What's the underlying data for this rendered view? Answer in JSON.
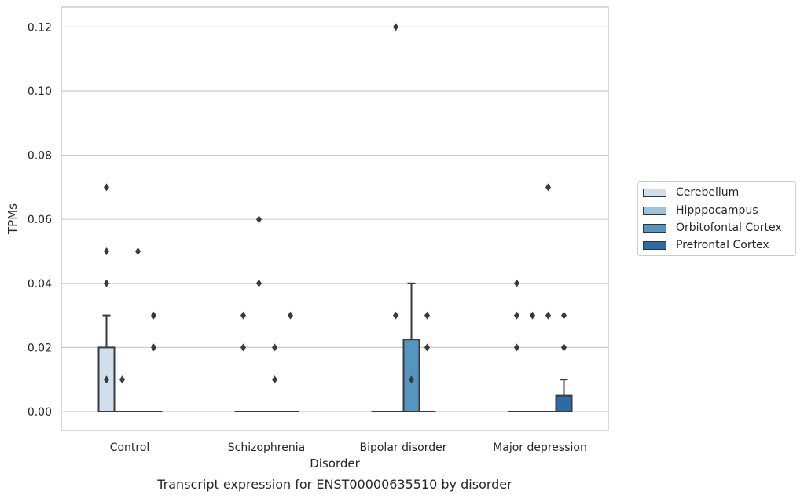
{
  "chart_data": {
    "type": "boxplot",
    "title": "Transcript expression for ENST00000635510 by disorder",
    "xlabel": "Disorder",
    "ylabel": "TPMs",
    "ylim": [
      -0.006,
      0.126
    ],
    "yticks": [
      0.0,
      0.02,
      0.04,
      0.06,
      0.08,
      0.1,
      0.12
    ],
    "ytick_labels": [
      "0.00",
      "0.02",
      "0.04",
      "0.06",
      "0.08",
      "0.10",
      "0.12"
    ],
    "grid": "horizontal",
    "legend_position": "right",
    "categories": [
      "Control",
      "Schizophrenia",
      "Bipolar disorder",
      "Major depression"
    ],
    "series": [
      {
        "name": "Cerebellum",
        "color": "#cfdfee",
        "boxes": [
          {
            "q1": 0,
            "median": 0,
            "q3": 0.02,
            "whisker_low": 0,
            "whisker_high": 0.03,
            "outliers": [
              0.07,
              0.05,
              0.04,
              0.01
            ]
          },
          {
            "q1": 0,
            "median": 0,
            "q3": 0,
            "whisker_low": 0,
            "whisker_high": 0,
            "outliers": [
              0.03,
              0.02
            ]
          },
          {
            "q1": 0,
            "median": 0,
            "q3": 0,
            "whisker_low": 0,
            "whisker_high": 0,
            "outliers": []
          },
          {
            "q1": 0,
            "median": 0,
            "q3": 0,
            "whisker_low": 0,
            "whisker_high": 0,
            "outliers": [
              0.04,
              0.03,
              0.02
            ]
          }
        ]
      },
      {
        "name": "Hipppocampus",
        "color": "#9cc3da",
        "boxes": [
          {
            "q1": 0,
            "median": 0,
            "q3": 0,
            "whisker_low": 0,
            "whisker_high": 0,
            "outliers": [
              0.01
            ]
          },
          {
            "q1": 0,
            "median": 0,
            "q3": 0,
            "whisker_low": 0,
            "whisker_high": 0,
            "outliers": [
              0.06,
              0.04
            ]
          },
          {
            "q1": 0,
            "median": 0,
            "q3": 0,
            "whisker_low": 0,
            "whisker_high": 0,
            "outliers": [
              0.12,
              0.03
            ]
          },
          {
            "q1": 0,
            "median": 0,
            "q3": 0,
            "whisker_low": 0,
            "whisker_high": 0,
            "outliers": [
              0.03
            ]
          }
        ]
      },
      {
        "name": "Orbitofontal Cortex",
        "color": "#5596c1",
        "boxes": [
          {
            "q1": 0,
            "median": 0,
            "q3": 0,
            "whisker_low": 0,
            "whisker_high": 0,
            "outliers": [
              0.05
            ]
          },
          {
            "q1": 0,
            "median": 0,
            "q3": 0,
            "whisker_low": 0,
            "whisker_high": 0,
            "outliers": [
              0.02,
              0.01
            ]
          },
          {
            "q1": 0,
            "median": 0,
            "q3": 0.0225,
            "whisker_low": 0,
            "whisker_high": 0.04,
            "outliers": [
              0.01
            ]
          },
          {
            "q1": 0,
            "median": 0,
            "q3": 0,
            "whisker_low": 0,
            "whisker_high": 0,
            "outliers": [
              0.07,
              0.03
            ]
          }
        ]
      },
      {
        "name": "Prefrontal Cortex",
        "color": "#2c6ba8",
        "boxes": [
          {
            "q1": 0,
            "median": 0,
            "q3": 0,
            "whisker_low": 0,
            "whisker_high": 0,
            "outliers": [
              0.03,
              0.02
            ]
          },
          {
            "q1": 0,
            "median": 0,
            "q3": 0,
            "whisker_low": 0,
            "whisker_high": 0,
            "outliers": [
              0.03
            ]
          },
          {
            "q1": 0,
            "median": 0,
            "q3": 0,
            "whisker_low": 0,
            "whisker_high": 0,
            "outliers": [
              0.03,
              0.02
            ]
          },
          {
            "q1": 0,
            "median": 0,
            "q3": 0.005,
            "whisker_low": 0,
            "whisker_high": 0.01,
            "outliers": [
              0.02,
              0.03,
              0.02
            ]
          }
        ]
      }
    ]
  }
}
